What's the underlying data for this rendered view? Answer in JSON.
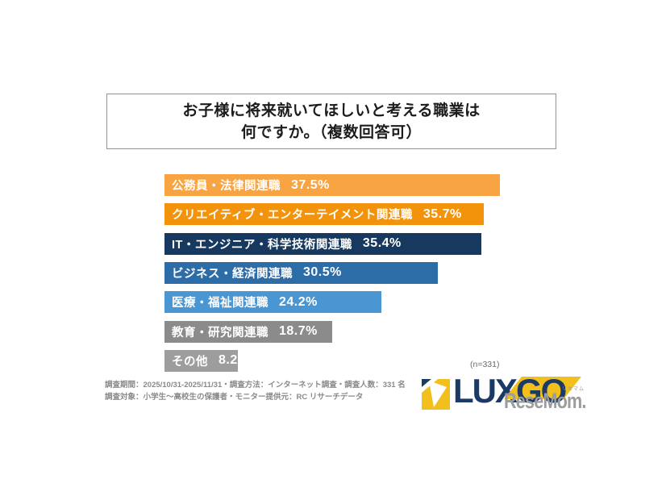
{
  "title": {
    "line1": "お子様に将来就いてほしいと考える職業は",
    "line2": "何ですか。（複数回答可）"
  },
  "chart_data": {
    "type": "bar",
    "orientation": "horizontal",
    "title": "お子様に将来就いてほしいと考える職業は何ですか。（複数回答可）",
    "categories": [
      "公務員・法律関連職",
      "クリエイティブ・エンターテイメント関連職",
      "IT・エンジニア・科学技術関連職",
      "ビジネス・経済関連職",
      "医療・福祉関連職",
      "教育・研究関連職",
      "その他"
    ],
    "values": [
      37.5,
      35.7,
      35.4,
      30.5,
      24.2,
      18.7,
      8.2
    ],
    "value_labels": [
      "37.5%",
      "35.7%",
      "35.4%",
      "30.5%",
      "24.2%",
      "18.7%",
      "8.2%"
    ],
    "unit": "%",
    "xlim": [
      0,
      40
    ],
    "grid": false,
    "legend": false,
    "bar_colors": [
      "#F8A443",
      "#F3930B",
      "#17395F",
      "#2C6CA7",
      "#4A96D3",
      "#8B8B8B",
      "#9D9D9D"
    ],
    "sample_label": "(n=331)"
  },
  "footnotes": {
    "line1": "調査期間：2025/10/31-2025/11/31・調査方法：インターネット調査・調査人数：331 名",
    "line2": "調査対象：小学生～高校生の保護者・モニター提供元：RC リサーチデータ"
  },
  "logo": {
    "lux": "LUX",
    "go": "GO",
    "resemom_text": "ReseMom.",
    "resemom_ruby": "リセマム",
    "navy": "#1B3A66",
    "yellow": "#F2C01C",
    "gray": "#9C9C9C"
  }
}
